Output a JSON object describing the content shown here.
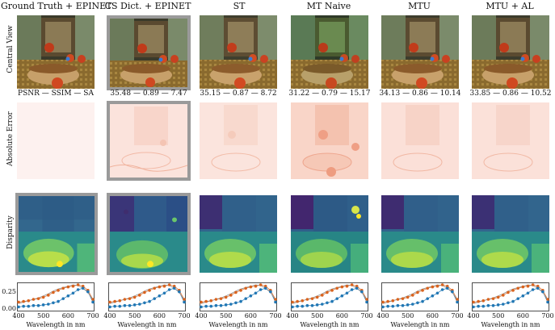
{
  "columns": [
    {
      "title": "Ground Truth + EPINET",
      "metrics": "PSNR — SSIM — SA"
    },
    {
      "title": "CS Dict. + EPINET",
      "metrics": "35.48 — 0.89 — 7.47"
    },
    {
      "title": "ST",
      "metrics": "35.15 — 0.87 — 8.72"
    },
    {
      "title": "MT Naive",
      "metrics": "31.22 — 0.79 — 15.17"
    },
    {
      "title": "MTU",
      "metrics": "34.13 — 0.86 — 10.14"
    },
    {
      "title": "MTU + AL",
      "metrics": "33.85 — 0.86 — 10.52"
    }
  ],
  "row_labels": {
    "central": "Central View",
    "error": "Absolute Error",
    "disparity": "Disparity"
  },
  "colors": {
    "orange": "#d9631e",
    "blue": "#2177b4",
    "gray": "#8c8c8c",
    "frame": "#9a9a9a"
  },
  "chart_data": {
    "type": "line",
    "title": "",
    "xlabel": "Wavelength in nm",
    "ylabel": "",
    "xlim": [
      400,
      700
    ],
    "ylim": [
      0,
      0.35
    ],
    "x_ticks": [
      "400",
      "500",
      "600",
      "700"
    ],
    "y_ticks": [
      "0.00",
      "0.25"
    ],
    "x": [
      400,
      420,
      440,
      460,
      480,
      500,
      520,
      540,
      560,
      580,
      600,
      620,
      640,
      660,
      680,
      700
    ],
    "series": [
      {
        "name": "orange dots",
        "values": [
          0.1,
          0.11,
          0.12,
          0.14,
          0.15,
          0.17,
          0.2,
          0.24,
          0.27,
          0.3,
          0.32,
          0.33,
          0.35,
          0.33,
          0.27,
          0.14
        ]
      },
      {
        "name": "blue dots",
        "values": [
          0.03,
          0.04,
          0.04,
          0.05,
          0.05,
          0.06,
          0.07,
          0.09,
          0.11,
          0.15,
          0.19,
          0.23,
          0.28,
          0.3,
          0.25,
          0.1
        ]
      },
      {
        "name": "gray line",
        "values": [
          0.08,
          0.1,
          0.12,
          0.14,
          0.16,
          0.19,
          0.22,
          0.26,
          0.29,
          0.31,
          0.33,
          0.35,
          0.34,
          0.3,
          0.24,
          0.13
        ]
      }
    ]
  }
}
